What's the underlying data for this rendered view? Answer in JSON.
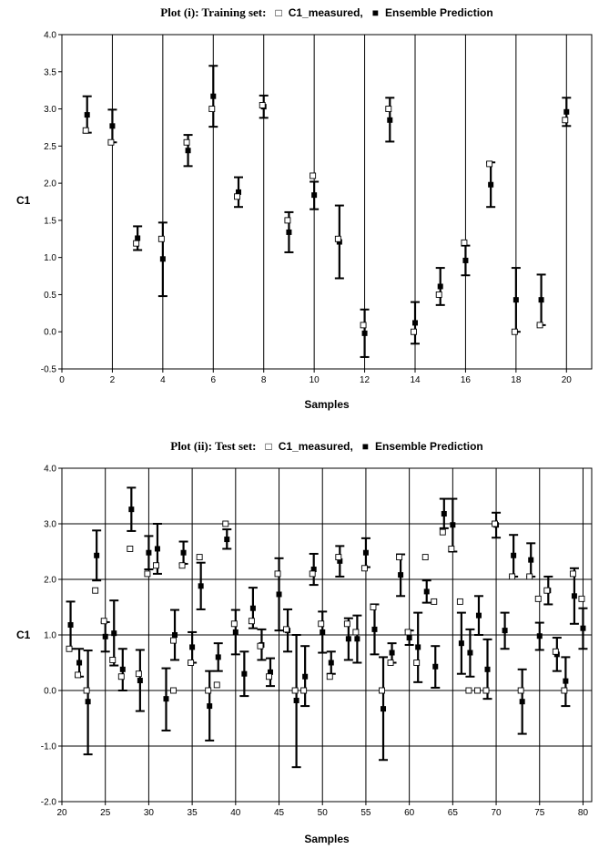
{
  "chart_data": [
    {
      "type": "scatter",
      "title_prefix": "Plot (i): Training set:",
      "legend": {
        "measured": "C1_measured,",
        "predicted": "Ensemble Prediction",
        "placement": "title"
      },
      "xlabel": "Samples",
      "ylabel": "C1",
      "xlim": [
        0,
        21
      ],
      "ylim": [
        -0.5,
        4.0
      ],
      "xticks": [
        0,
        2,
        4,
        6,
        8,
        10,
        12,
        14,
        16,
        18,
        20
      ],
      "xtick_labels": [
        "0",
        "2",
        "4",
        "6",
        "8",
        "10",
        "12",
        "14",
        "16",
        "18",
        "20"
      ],
      "yticks": [
        -0.5,
        0.0,
        0.5,
        1.0,
        1.5,
        2.0,
        2.5,
        3.0,
        3.5,
        4.0
      ],
      "ytick_labels": [
        "-0.5",
        "0.0",
        "0.5",
        "1.0",
        "1.5",
        "2.0",
        "2.5",
        "3.0",
        "3.5",
        "4.0"
      ],
      "grid": "vertical",
      "series": [
        {
          "name": "C1_measured",
          "marker": "open-square",
          "points": [
            {
              "x": 1,
              "y": 2.71
            },
            {
              "x": 2,
              "y": 2.55
            },
            {
              "x": 3,
              "y": 1.19
            },
            {
              "x": 4,
              "y": 1.25
            },
            {
              "x": 5,
              "y": 2.55
            },
            {
              "x": 6,
              "y": 3.0
            },
            {
              "x": 7,
              "y": 1.82
            },
            {
              "x": 8,
              "y": 3.05
            },
            {
              "x": 9,
              "y": 1.5
            },
            {
              "x": 10,
              "y": 2.1
            },
            {
              "x": 11,
              "y": 1.25
            },
            {
              "x": 12,
              "y": 0.09
            },
            {
              "x": 13,
              "y": 3.0
            },
            {
              "x": 14,
              "y": 0.0
            },
            {
              "x": 15,
              "y": 0.5
            },
            {
              "x": 16,
              "y": 1.2
            },
            {
              "x": 17,
              "y": 2.26
            },
            {
              "x": 18,
              "y": 0.0
            },
            {
              "x": 19,
              "y": 0.09
            },
            {
              "x": 20,
              "y": 2.85
            }
          ]
        },
        {
          "name": "Ensemble Prediction",
          "marker": "filled-square",
          "points": [
            {
              "x": 1,
              "y": 2.92,
              "lo": 2.68,
              "hi": 3.17
            },
            {
              "x": 2,
              "y": 2.77,
              "lo": 2.55,
              "hi": 2.99
            },
            {
              "x": 3,
              "y": 1.26,
              "lo": 1.1,
              "hi": 1.42
            },
            {
              "x": 4,
              "y": 0.98,
              "lo": 0.48,
              "hi": 1.47
            },
            {
              "x": 5,
              "y": 2.44,
              "lo": 2.23,
              "hi": 2.65
            },
            {
              "x": 6,
              "y": 3.17,
              "lo": 2.76,
              "hi": 3.58
            },
            {
              "x": 7,
              "y": 1.88,
              "lo": 1.68,
              "hi": 2.08
            },
            {
              "x": 8,
              "y": 3.03,
              "lo": 2.88,
              "hi": 3.18
            },
            {
              "x": 9,
              "y": 1.34,
              "lo": 1.07,
              "hi": 1.61
            },
            {
              "x": 10,
              "y": 1.84,
              "lo": 1.65,
              "hi": 2.02
            },
            {
              "x": 11,
              "y": 1.21,
              "lo": 0.72,
              "hi": 1.7
            },
            {
              "x": 12,
              "y": -0.02,
              "lo": -0.34,
              "hi": 0.3
            },
            {
              "x": 13,
              "y": 2.85,
              "lo": 2.56,
              "hi": 3.15
            },
            {
              "x": 14,
              "y": 0.12,
              "lo": -0.16,
              "hi": 0.4
            },
            {
              "x": 15,
              "y": 0.61,
              "lo": 0.36,
              "hi": 0.86
            },
            {
              "x": 16,
              "y": 0.96,
              "lo": 0.76,
              "hi": 1.16
            },
            {
              "x": 17,
              "y": 1.98,
              "lo": 1.68,
              "hi": 2.28
            },
            {
              "x": 18,
              "y": 0.43,
              "lo": 0.0,
              "hi": 0.86
            },
            {
              "x": 19,
              "y": 0.43,
              "lo": 0.09,
              "hi": 0.77
            },
            {
              "x": 20,
              "y": 2.96,
              "lo": 2.77,
              "hi": 3.15
            }
          ]
        }
      ]
    },
    {
      "type": "scatter",
      "title_prefix": "Plot (ii): Test set:",
      "legend": {
        "measured": "C1_measured,",
        "predicted": "Ensemble Prediction",
        "placement": "title"
      },
      "xlabel": "Samples",
      "ylabel": "C1",
      "xlim": [
        20,
        81
      ],
      "ylim": [
        -2.0,
        4.0
      ],
      "xticks": [
        20,
        25,
        30,
        35,
        40,
        45,
        50,
        55,
        60,
        65,
        70,
        75,
        80
      ],
      "xtick_labels": [
        "20",
        "25",
        "30",
        "35",
        "40",
        "45",
        "50",
        "55",
        "60",
        "65",
        "70",
        "75",
        "80"
      ],
      "yticks": [
        -2.0,
        -1.0,
        0.0,
        1.0,
        2.0,
        3.0,
        4.0
      ],
      "ytick_labels": [
        "-2.0",
        "-1.0",
        "0.0",
        "1.0",
        "2.0",
        "3.0",
        "4.0"
      ],
      "grid": "both",
      "series": [
        {
          "name": "C1_measured",
          "marker": "open-square",
          "points": [
            {
              "x": 21,
              "y": 0.75
            },
            {
              "x": 22,
              "y": 0.28
            },
            {
              "x": 23,
              "y": 0.0
            },
            {
              "x": 24,
              "y": 1.8
            },
            {
              "x": 25,
              "y": 1.25
            },
            {
              "x": 26,
              "y": 0.55
            },
            {
              "x": 27,
              "y": 0.25
            },
            {
              "x": 28,
              "y": 2.55
            },
            {
              "x": 29,
              "y": 0.3
            },
            {
              "x": 30,
              "y": 2.1
            },
            {
              "x": 31,
              "y": 2.25
            },
            {
              "x": 33,
              "y": 0.0
            },
            {
              "x": 33,
              "y": 0.9
            },
            {
              "x": 34,
              "y": 2.25
            },
            {
              "x": 35,
              "y": 0.5
            },
            {
              "x": 36,
              "y": 2.4
            },
            {
              "x": 37,
              "y": 0.0
            },
            {
              "x": 38,
              "y": 0.1
            },
            {
              "x": 39,
              "y": 3.0
            },
            {
              "x": 40,
              "y": 1.2
            },
            {
              "x": 42,
              "y": 1.25
            },
            {
              "x": 43,
              "y": 0.8
            },
            {
              "x": 44,
              "y": 0.25
            },
            {
              "x": 45,
              "y": 2.1
            },
            {
              "x": 46,
              "y": 1.1
            },
            {
              "x": 47,
              "y": 0.0
            },
            {
              "x": 48,
              "y": 0.0
            },
            {
              "x": 49,
              "y": 2.1
            },
            {
              "x": 50,
              "y": 1.2
            },
            {
              "x": 51,
              "y": 0.25
            },
            {
              "x": 52,
              "y": 2.4
            },
            {
              "x": 53,
              "y": 1.2
            },
            {
              "x": 54,
              "y": 1.05
            },
            {
              "x": 55,
              "y": 2.2
            },
            {
              "x": 56,
              "y": 1.5
            },
            {
              "x": 57,
              "y": 0.0
            },
            {
              "x": 58,
              "y": 0.5
            },
            {
              "x": 59,
              "y": 2.4
            },
            {
              "x": 60,
              "y": 1.05
            },
            {
              "x": 61,
              "y": 0.5
            },
            {
              "x": 62,
              "y": 2.4
            },
            {
              "x": 63,
              "y": 1.6
            },
            {
              "x": 64,
              "y": 2.85
            },
            {
              "x": 65,
              "y": 2.55
            },
            {
              "x": 66,
              "y": 1.6
            },
            {
              "x": 67,
              "y": 0.0
            },
            {
              "x": 68,
              "y": 0.0
            },
            {
              "x": 69,
              "y": 0.0
            },
            {
              "x": 70,
              "y": 3.0
            },
            {
              "x": 72,
              "y": 2.05
            },
            {
              "x": 73,
              "y": 0.0
            },
            {
              "x": 74,
              "y": 2.05
            },
            {
              "x": 75,
              "y": 1.65
            },
            {
              "x": 76,
              "y": 1.8
            },
            {
              "x": 77,
              "y": 0.7
            },
            {
              "x": 78,
              "y": 0.0
            },
            {
              "x": 79,
              "y": 2.1
            },
            {
              "x": 80,
              "y": 1.65
            }
          ]
        },
        {
          "name": "Ensemble Prediction",
          "marker": "filled-square",
          "points": [
            {
              "x": 21,
              "y": 1.18,
              "lo": 0.75,
              "hi": 1.6
            },
            {
              "x": 22,
              "y": 0.5,
              "lo": 0.25,
              "hi": 0.75
            },
            {
              "x": 23,
              "y": -0.2,
              "lo": -1.15,
              "hi": 0.72
            },
            {
              "x": 24,
              "y": 2.43,
              "lo": 1.98,
              "hi": 2.88
            },
            {
              "x": 25,
              "y": 0.97,
              "lo": 0.7,
              "hi": 1.23
            },
            {
              "x": 26,
              "y": 1.03,
              "lo": 0.45,
              "hi": 1.62
            },
            {
              "x": 27,
              "y": 0.38,
              "lo": 0.0,
              "hi": 0.75
            },
            {
              "x": 28,
              "y": 3.26,
              "lo": 2.87,
              "hi": 3.65
            },
            {
              "x": 29,
              "y": 0.18,
              "lo": -0.37,
              "hi": 0.73
            },
            {
              "x": 30,
              "y": 2.48,
              "lo": 2.18,
              "hi": 2.78
            },
            {
              "x": 31,
              "y": 2.55,
              "lo": 2.1,
              "hi": 3.0
            },
            {
              "x": 32,
              "y": -0.15,
              "lo": -0.72,
              "hi": 0.4
            },
            {
              "x": 33,
              "y": 1.0,
              "lo": 0.55,
              "hi": 1.45
            },
            {
              "x": 34,
              "y": 2.48,
              "lo": 2.28,
              "hi": 2.68
            },
            {
              "x": 35,
              "y": 0.78,
              "lo": 0.5,
              "hi": 1.05
            },
            {
              "x": 36,
              "y": 1.88,
              "lo": 1.46,
              "hi": 2.3
            },
            {
              "x": 37,
              "y": -0.28,
              "lo": -0.9,
              "hi": 0.35
            },
            {
              "x": 38,
              "y": 0.6,
              "lo": 0.35,
              "hi": 0.85
            },
            {
              "x": 39,
              "y": 2.72,
              "lo": 2.55,
              "hi": 2.9
            },
            {
              "x": 40,
              "y": 1.05,
              "lo": 0.65,
              "hi": 1.45
            },
            {
              "x": 41,
              "y": 0.3,
              "lo": -0.1,
              "hi": 0.7
            },
            {
              "x": 42,
              "y": 1.48,
              "lo": 1.12,
              "hi": 1.85
            },
            {
              "x": 43,
              "y": 0.82,
              "lo": 0.55,
              "hi": 1.1
            },
            {
              "x": 44,
              "y": 0.33,
              "lo": 0.08,
              "hi": 0.58
            },
            {
              "x": 45,
              "y": 1.73,
              "lo": 1.08,
              "hi": 2.38
            },
            {
              "x": 46,
              "y": 1.08,
              "lo": 0.7,
              "hi": 1.46
            },
            {
              "x": 47,
              "y": -0.18,
              "lo": -1.38,
              "hi": 1.0
            },
            {
              "x": 48,
              "y": 0.25,
              "lo": -0.28,
              "hi": 0.8
            },
            {
              "x": 49,
              "y": 2.18,
              "lo": 1.9,
              "hi": 2.46
            },
            {
              "x": 50,
              "y": 1.05,
              "lo": 0.68,
              "hi": 1.42
            },
            {
              "x": 51,
              "y": 0.5,
              "lo": 0.3,
              "hi": 0.7
            },
            {
              "x": 52,
              "y": 2.33,
              "lo": 2.05,
              "hi": 2.6
            },
            {
              "x": 53,
              "y": 0.93,
              "lo": 0.55,
              "hi": 1.3
            },
            {
              "x": 54,
              "y": 0.93,
              "lo": 0.5,
              "hi": 1.35
            },
            {
              "x": 55,
              "y": 2.48,
              "lo": 2.22,
              "hi": 2.74
            },
            {
              "x": 56,
              "y": 1.1,
              "lo": 0.65,
              "hi": 1.55
            },
            {
              "x": 57,
              "y": -0.33,
              "lo": -1.25,
              "hi": 0.6
            },
            {
              "x": 58,
              "y": 0.68,
              "lo": 0.5,
              "hi": 0.85
            },
            {
              "x": 59,
              "y": 2.08,
              "lo": 1.7,
              "hi": 2.45
            },
            {
              "x": 60,
              "y": 0.95,
              "lo": 0.82,
              "hi": 1.08
            },
            {
              "x": 61,
              "y": 0.78,
              "lo": 0.15,
              "hi": 1.4
            },
            {
              "x": 62,
              "y": 1.78,
              "lo": 1.58,
              "hi": 1.98
            },
            {
              "x": 63,
              "y": 0.43,
              "lo": 0.05,
              "hi": 0.8
            },
            {
              "x": 64,
              "y": 3.18,
              "lo": 2.92,
              "hi": 3.45
            },
            {
              "x": 65,
              "y": 2.98,
              "lo": 2.5,
              "hi": 3.45
            },
            {
              "x": 66,
              "y": 0.85,
              "lo": 0.3,
              "hi": 1.4
            },
            {
              "x": 67,
              "y": 0.68,
              "lo": 0.25,
              "hi": 1.1
            },
            {
              "x": 68,
              "y": 1.35,
              "lo": 1.0,
              "hi": 1.7
            },
            {
              "x": 69,
              "y": 0.38,
              "lo": -0.15,
              "hi": 0.92
            },
            {
              "x": 70,
              "y": 2.98,
              "lo": 2.75,
              "hi": 3.2
            },
            {
              "x": 71,
              "y": 1.08,
              "lo": 0.75,
              "hi": 1.4
            },
            {
              "x": 72,
              "y": 2.43,
              "lo": 2.05,
              "hi": 2.8
            },
            {
              "x": 73,
              "y": -0.2,
              "lo": -0.78,
              "hi": 0.38
            },
            {
              "x": 74,
              "y": 2.35,
              "lo": 2.05,
              "hi": 2.65
            },
            {
              "x": 75,
              "y": 0.98,
              "lo": 0.73,
              "hi": 1.22
            },
            {
              "x": 76,
              "y": 1.8,
              "lo": 1.55,
              "hi": 2.05
            },
            {
              "x": 77,
              "y": 0.65,
              "lo": 0.35,
              "hi": 0.95
            },
            {
              "x": 78,
              "y": 0.17,
              "lo": -0.28,
              "hi": 0.6
            },
            {
              "x": 79,
              "y": 1.7,
              "lo": 1.2,
              "hi": 2.2
            },
            {
              "x": 80,
              "y": 1.12,
              "lo": 0.75,
              "hi": 1.48
            }
          ]
        }
      ]
    }
  ]
}
